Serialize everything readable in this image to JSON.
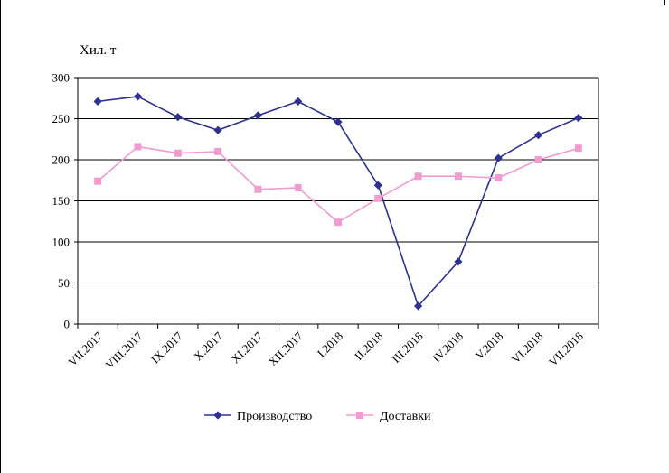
{
  "chart_data": {
    "type": "line",
    "title": "",
    "ylabel": "Хил. т",
    "xlabel": "",
    "ylim": [
      0,
      300
    ],
    "yticks": [
      0,
      50,
      100,
      150,
      200,
      250,
      300
    ],
    "grid": true,
    "legend_position": "bottom",
    "categories": [
      "VII.2017",
      "VIII.2017",
      "IX.2017",
      "X.2017",
      "XI.2017",
      "XII.2017",
      "I.2018",
      "II.2018",
      "III.2018",
      "IV.2018",
      "V.2018",
      "VI.2018",
      "VII.2018"
    ],
    "series": [
      {
        "name": "Производство",
        "color": "#2E3192",
        "marker": "diamond",
        "values": [
          271,
          277,
          252,
          236,
          254,
          271,
          246,
          169,
          22,
          76,
          202,
          230,
          251
        ]
      },
      {
        "name": "Доставки",
        "color": "#F29BD1",
        "marker": "square",
        "values": [
          174,
          216,
          208,
          210,
          164,
          166,
          124,
          153,
          180,
          180,
          178,
          200,
          214
        ]
      }
    ]
  }
}
